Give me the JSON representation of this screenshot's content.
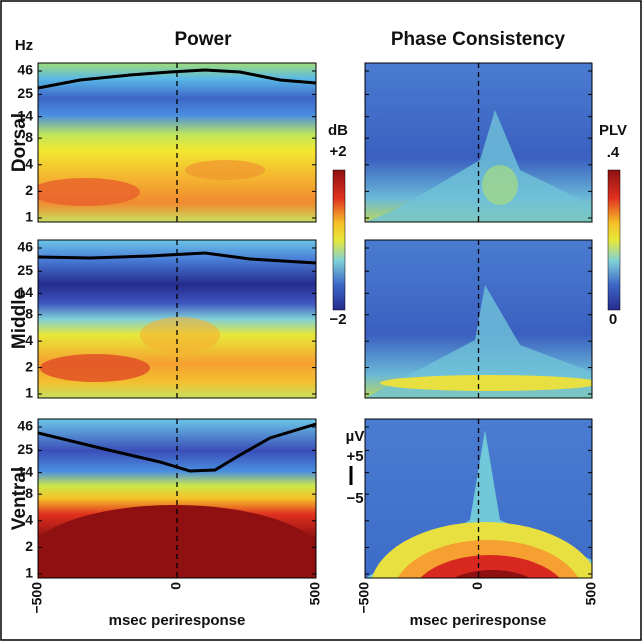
{
  "figure": {
    "titles": [
      "Power",
      "Phase Consistency"
    ],
    "y_unit": "Hz",
    "rows": [
      "Dorsal",
      "Middle",
      "Ventral"
    ],
    "yticks": [
      46,
      25,
      14,
      8,
      4,
      2,
      1
    ],
    "xticks": [
      {
        "value": -500,
        "label": "−500"
      },
      0,
      500
    ],
    "xlabel": "msec periresponse",
    "db_scale": {
      "unit": "dB",
      "ticks": [
        {
          "value": 2,
          "label": "+2"
        },
        {
          "value": -2,
          "label": "−2"
        }
      ]
    },
    "plv_scale": {
      "unit": "PLV",
      "ticks": [
        {
          "value": 0.4,
          "label": ".4"
        },
        0
      ]
    },
    "uv_scale": {
      "unit": "µV",
      "ticks": [
        {
          "value": 5,
          "label": "+5"
        },
        {
          "value": -5,
          "label": "−5"
        }
      ]
    }
  }
}
